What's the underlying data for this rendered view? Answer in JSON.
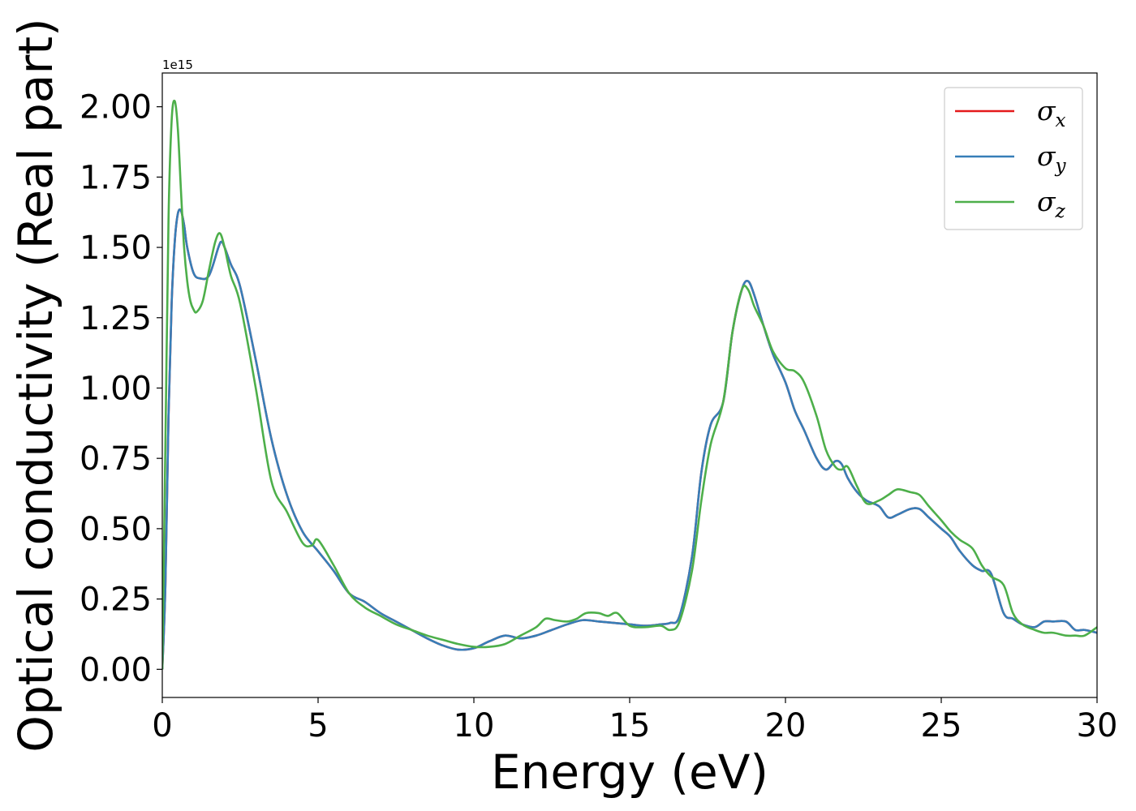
{
  "chart_data": {
    "type": "line",
    "title": "",
    "xlabel": "Energy (eV)",
    "ylabel": "Optical conductivity (Real part)",
    "y_offset_label": "1e15",
    "xlim": [
      0,
      30
    ],
    "ylim": [
      -0.1,
      2.12
    ],
    "xticks": [
      0,
      5,
      10,
      15,
      20,
      25,
      30
    ],
    "xtick_labels": [
      "0",
      "5",
      "10",
      "15",
      "20",
      "25",
      "30"
    ],
    "yticks": [
      0,
      0.25,
      0.5,
      0.75,
      1.0,
      1.25,
      1.5,
      1.75,
      2.0
    ],
    "ytick_labels": [
      "0.00",
      "0.25",
      "0.50",
      "0.75",
      "1.00",
      "1.25",
      "1.50",
      "1.75",
      "2.00"
    ],
    "grid": false,
    "legend_position": "top-right",
    "series": [
      {
        "name": "σx",
        "legend_symbol": "σ",
        "legend_subscript": "x",
        "color": "#e41a1c",
        "x": [
          0,
          0.1,
          0.2,
          0.3,
          0.4,
          0.5,
          0.6,
          0.7,
          0.8,
          1.0,
          1.2,
          1.5,
          1.8,
          1.9,
          2.0,
          2.2,
          2.5,
          3.0,
          3.5,
          4.0,
          4.5,
          5.0,
          5.5,
          6.0,
          6.5,
          7.0,
          7.5,
          8.0,
          8.5,
          9.0,
          9.5,
          10.0,
          10.5,
          11.0,
          11.5,
          12.0,
          12.5,
          13.0,
          13.5,
          14.0,
          14.5,
          15.0,
          15.5,
          16.0,
          16.3,
          16.6,
          17.0,
          17.3,
          17.6,
          18.0,
          18.3,
          18.6,
          18.8,
          19.0,
          19.3,
          19.6,
          20.0,
          20.3,
          20.6,
          21.0,
          21.3,
          21.6,
          21.8,
          22.0,
          22.3,
          22.6,
          23.0,
          23.3,
          23.6,
          24.0,
          24.3,
          24.6,
          25.0,
          25.3,
          25.6,
          26.0,
          26.3,
          26.6,
          27.0,
          27.3,
          27.6,
          28.0,
          28.3,
          28.6,
          29.0,
          29.3,
          29.6,
          30.0
        ],
        "values": [
          0.0,
          0.3,
          0.9,
          1.3,
          1.52,
          1.62,
          1.63,
          1.58,
          1.5,
          1.41,
          1.39,
          1.4,
          1.5,
          1.52,
          1.5,
          1.44,
          1.36,
          1.1,
          0.82,
          0.62,
          0.49,
          0.42,
          0.35,
          0.27,
          0.24,
          0.2,
          0.17,
          0.14,
          0.11,
          0.085,
          0.07,
          0.075,
          0.1,
          0.12,
          0.11,
          0.12,
          0.14,
          0.16,
          0.175,
          0.17,
          0.165,
          0.16,
          0.155,
          0.16,
          0.165,
          0.19,
          0.4,
          0.7,
          0.87,
          0.95,
          1.2,
          1.35,
          1.38,
          1.33,
          1.22,
          1.12,
          1.02,
          0.92,
          0.85,
          0.75,
          0.71,
          0.74,
          0.73,
          0.68,
          0.63,
          0.6,
          0.58,
          0.54,
          0.55,
          0.57,
          0.57,
          0.54,
          0.5,
          0.47,
          0.42,
          0.37,
          0.35,
          0.34,
          0.2,
          0.18,
          0.16,
          0.15,
          0.17,
          0.17,
          0.17,
          0.14,
          0.14,
          0.13
        ]
      },
      {
        "name": "σy",
        "legend_symbol": "σ",
        "legend_subscript": "y",
        "color": "#377eb8",
        "x": [
          0,
          0.1,
          0.2,
          0.3,
          0.4,
          0.5,
          0.6,
          0.7,
          0.8,
          1.0,
          1.2,
          1.5,
          1.8,
          1.9,
          2.0,
          2.2,
          2.5,
          3.0,
          3.5,
          4.0,
          4.5,
          5.0,
          5.5,
          6.0,
          6.5,
          7.0,
          7.5,
          8.0,
          8.5,
          9.0,
          9.5,
          10.0,
          10.5,
          11.0,
          11.5,
          12.0,
          12.5,
          13.0,
          13.5,
          14.0,
          14.5,
          15.0,
          15.5,
          16.0,
          16.3,
          16.6,
          17.0,
          17.3,
          17.6,
          18.0,
          18.3,
          18.6,
          18.8,
          19.0,
          19.3,
          19.6,
          20.0,
          20.3,
          20.6,
          21.0,
          21.3,
          21.6,
          21.8,
          22.0,
          22.3,
          22.6,
          23.0,
          23.3,
          23.6,
          24.0,
          24.3,
          24.6,
          25.0,
          25.3,
          25.6,
          26.0,
          26.3,
          26.6,
          27.0,
          27.3,
          27.6,
          28.0,
          28.3,
          28.6,
          29.0,
          29.3,
          29.6,
          30.0
        ],
        "values": [
          0.0,
          0.3,
          0.9,
          1.3,
          1.52,
          1.62,
          1.63,
          1.58,
          1.5,
          1.41,
          1.39,
          1.4,
          1.5,
          1.52,
          1.5,
          1.44,
          1.36,
          1.1,
          0.82,
          0.62,
          0.49,
          0.42,
          0.35,
          0.27,
          0.24,
          0.2,
          0.17,
          0.14,
          0.11,
          0.085,
          0.07,
          0.075,
          0.1,
          0.12,
          0.11,
          0.12,
          0.14,
          0.16,
          0.175,
          0.17,
          0.165,
          0.16,
          0.155,
          0.16,
          0.165,
          0.19,
          0.4,
          0.7,
          0.87,
          0.95,
          1.2,
          1.35,
          1.38,
          1.33,
          1.22,
          1.12,
          1.02,
          0.92,
          0.85,
          0.75,
          0.71,
          0.74,
          0.73,
          0.68,
          0.63,
          0.6,
          0.58,
          0.54,
          0.55,
          0.57,
          0.57,
          0.54,
          0.5,
          0.47,
          0.42,
          0.37,
          0.35,
          0.34,
          0.2,
          0.18,
          0.16,
          0.15,
          0.17,
          0.17,
          0.17,
          0.14,
          0.14,
          0.13
        ]
      },
      {
        "name": "σz",
        "legend_symbol": "σ",
        "legend_subscript": "z",
        "color": "#4daf4a",
        "x": [
          0,
          0.1,
          0.2,
          0.3,
          0.4,
          0.5,
          0.6,
          0.7,
          0.8,
          0.9,
          1.0,
          1.1,
          1.3,
          1.5,
          1.7,
          1.85,
          2.0,
          2.2,
          2.5,
          3.0,
          3.5,
          4.0,
          4.5,
          4.8,
          5.0,
          5.5,
          6.0,
          6.5,
          7.0,
          7.5,
          8.0,
          8.5,
          9.0,
          9.5,
          10.0,
          10.5,
          11.0,
          11.5,
          12.0,
          12.3,
          12.6,
          13.0,
          13.3,
          13.6,
          14.0,
          14.3,
          14.6,
          15.0,
          15.5,
          16.0,
          16.3,
          16.6,
          17.0,
          17.3,
          17.6,
          18.0,
          18.3,
          18.6,
          18.8,
          19.0,
          19.3,
          19.6,
          20.0,
          20.3,
          20.6,
          21.0,
          21.3,
          21.6,
          21.8,
          22.0,
          22.3,
          22.6,
          23.0,
          23.3,
          23.6,
          24.0,
          24.3,
          24.6,
          25.0,
          25.3,
          25.6,
          26.0,
          26.3,
          26.6,
          27.0,
          27.3,
          27.6,
          28.0,
          28.3,
          28.6,
          29.0,
          29.3,
          29.6,
          30.0
        ],
        "values": [
          0.0,
          0.8,
          1.6,
          1.95,
          2.02,
          1.92,
          1.7,
          1.5,
          1.38,
          1.31,
          1.28,
          1.27,
          1.31,
          1.42,
          1.52,
          1.55,
          1.5,
          1.4,
          1.3,
          1.0,
          0.67,
          0.56,
          0.45,
          0.44,
          0.46,
          0.37,
          0.27,
          0.22,
          0.19,
          0.16,
          0.14,
          0.12,
          0.105,
          0.09,
          0.08,
          0.08,
          0.09,
          0.12,
          0.15,
          0.18,
          0.175,
          0.17,
          0.18,
          0.2,
          0.2,
          0.19,
          0.2,
          0.155,
          0.15,
          0.155,
          0.14,
          0.17,
          0.35,
          0.6,
          0.8,
          0.95,
          1.2,
          1.35,
          1.35,
          1.29,
          1.22,
          1.13,
          1.07,
          1.06,
          1.02,
          0.9,
          0.78,
          0.72,
          0.71,
          0.72,
          0.65,
          0.59,
          0.6,
          0.62,
          0.64,
          0.63,
          0.62,
          0.58,
          0.53,
          0.49,
          0.46,
          0.43,
          0.37,
          0.33,
          0.3,
          0.2,
          0.16,
          0.14,
          0.13,
          0.13,
          0.12,
          0.12,
          0.12,
          0.15
        ]
      }
    ]
  }
}
